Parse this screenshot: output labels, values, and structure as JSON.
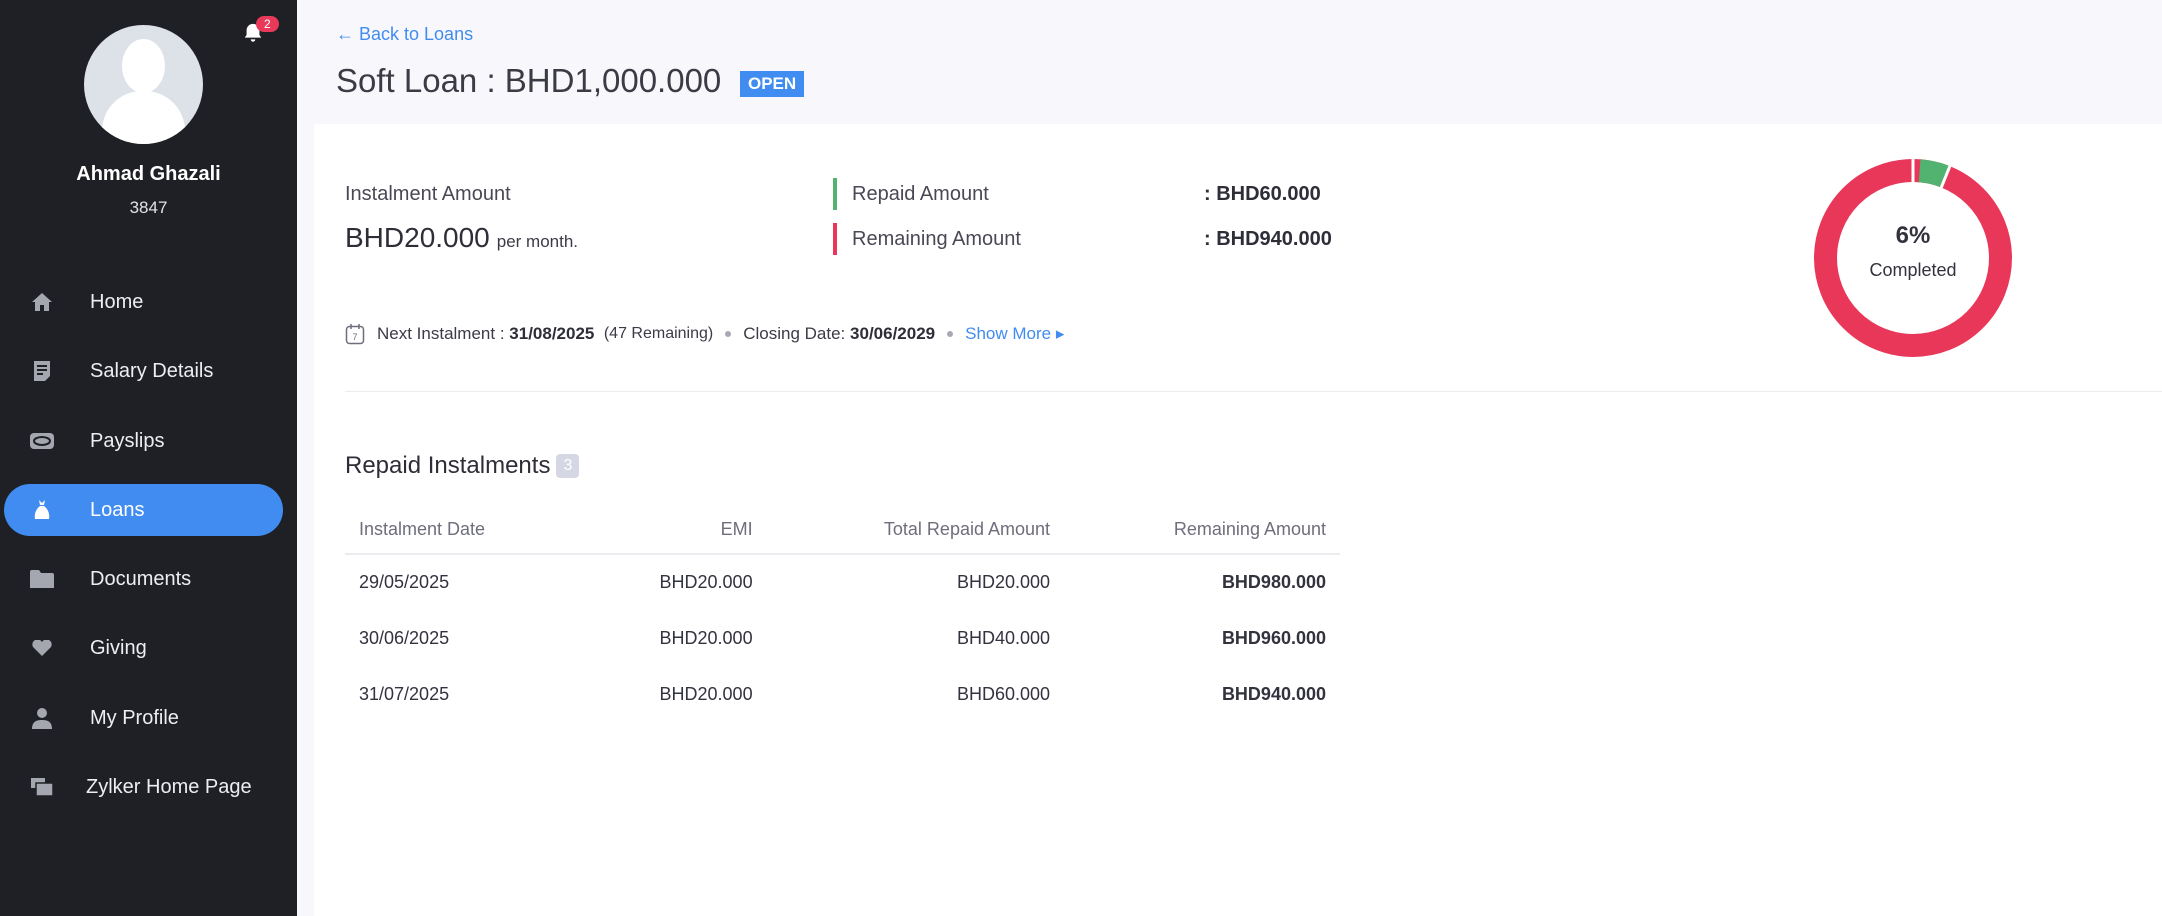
{
  "user": {
    "name": "Ahmad Ghazali",
    "id": "3847",
    "notifications": "2"
  },
  "nav": [
    {
      "label": "Home",
      "icon": "home-icon"
    },
    {
      "label": "Salary Details",
      "icon": "document-icon"
    },
    {
      "label": "Payslips",
      "icon": "payslip-icon"
    },
    {
      "label": "Loans",
      "icon": "money-bag-icon",
      "active": true
    },
    {
      "label": "Documents",
      "icon": "folder-icon"
    },
    {
      "label": "Giving",
      "icon": "heart-icon"
    },
    {
      "label": "My Profile",
      "icon": "user-icon"
    },
    {
      "label": "Zylker Home Page",
      "icon": "windows-icon"
    }
  ],
  "header": {
    "back": "← Back to Loans",
    "title": "Soft Loan : BHD1,000.000",
    "status": "OPEN"
  },
  "summary": {
    "instalment_label": "Instalment Amount",
    "instalment_value": "BHD20.000",
    "per": "per month.",
    "repaid_label": "Repaid Amount",
    "repaid_value": ": BHD60.000",
    "remaining_label": "Remaining Amount",
    "remaining_value": ": BHD940.000",
    "next_label": "Next Instalment :",
    "next_date": "31/08/2025",
    "next_remaining": "(47 Remaining)",
    "closing_label": "Closing Date:",
    "closing_date": "30/06/2029",
    "show_more": "Show More ▸"
  },
  "progress": {
    "percent": 6,
    "percent_text": "6%",
    "label": "Completed",
    "colors": {
      "done": "#52b26f",
      "remaining": "#e9375a"
    }
  },
  "instalments": {
    "title": "Repaid Instalments",
    "count": "3",
    "headers": [
      "Instalment Date",
      "EMI",
      "Total Repaid Amount",
      "Remaining Amount"
    ],
    "rows": [
      [
        "29/05/2025",
        "BHD20.000",
        "BHD20.000",
        "BHD980.000"
      ],
      [
        "30/06/2025",
        "BHD20.000",
        "BHD40.000",
        "BHD960.000"
      ],
      [
        "31/07/2025",
        "BHD20.000",
        "BHD60.000",
        "BHD940.000"
      ]
    ]
  }
}
